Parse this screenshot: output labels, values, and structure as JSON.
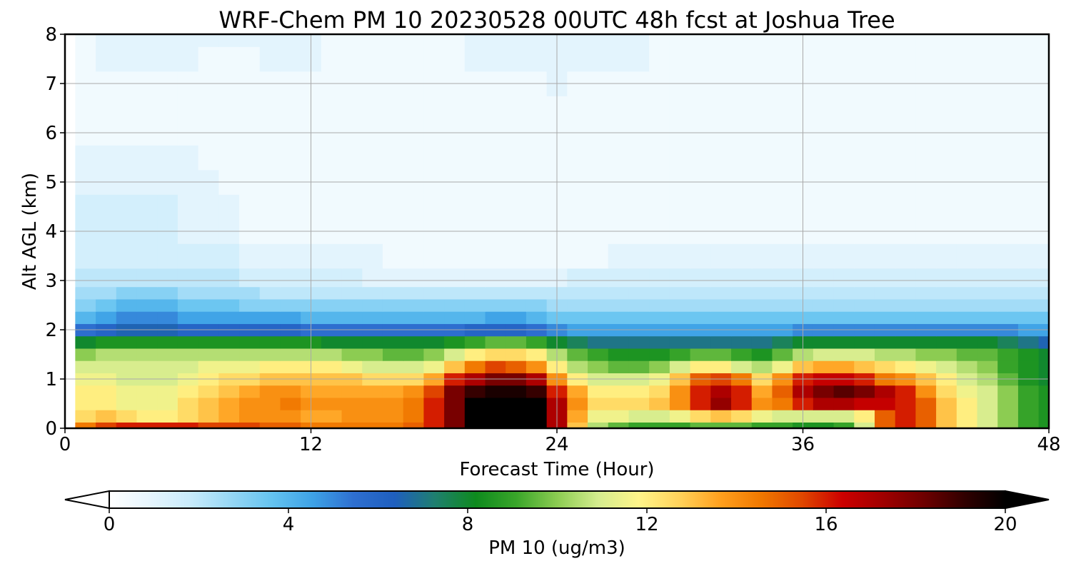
{
  "chart_data": {
    "type": "heatmap",
    "title": "WRF-Chem PM 10  20230528 00UTC 48h fcst at Joshua Tree",
    "xlabel": "Forecast Time (Hour)",
    "ylabel": "Alt AGL (km)",
    "xlim": [
      0,
      48
    ],
    "ylim": [
      0,
      8
    ],
    "x_ticks": [
      "0",
      "12",
      "24",
      "36",
      "48"
    ],
    "y_ticks": [
      "0",
      "1",
      "2",
      "3",
      "4",
      "5",
      "6",
      "7",
      "8"
    ],
    "grid": true,
    "x": [
      0,
      1,
      2,
      3,
      4,
      5,
      6,
      7,
      8,
      9,
      10,
      11,
      12,
      13,
      14,
      15,
      16,
      17,
      18,
      19,
      20,
      21,
      22,
      23,
      24,
      25,
      26,
      27,
      28,
      29,
      30,
      31,
      32,
      33,
      34,
      35,
      36,
      37,
      38,
      39,
      40,
      41,
      42,
      43,
      44,
      45,
      46,
      47,
      48
    ],
    "y": [
      0,
      0.25,
      0.5,
      0.75,
      1,
      1.25,
      1.5,
      1.75,
      2,
      2.25,
      2.5,
      2.75,
      3,
      3.5,
      4,
      4.5,
      5,
      5.5,
      6,
      6.5,
      7,
      7.5,
      8
    ],
    "values": [
      [
        0,
        14.5,
        15.5,
        16,
        16,
        16,
        16,
        15.5,
        15.5,
        15.5,
        15,
        15,
        14.5,
        14.5,
        14.5,
        14.5,
        14.5,
        15,
        16,
        18,
        20,
        20,
        20,
        20,
        17,
        13,
        10.5,
        9.5,
        9,
        9,
        9,
        9.5,
        9.5,
        9.5,
        9,
        9,
        8.5,
        8.5,
        9,
        11,
        15,
        16,
        15,
        13,
        12,
        11,
        10,
        9,
        8.5
      ],
      [
        0,
        12.5,
        13,
        12.5,
        12,
        12,
        12.5,
        13,
        13.5,
        14,
        14,
        14,
        13.5,
        13.5,
        14,
        14,
        14,
        14.5,
        16,
        18,
        20,
        20,
        20,
        20,
        17,
        13.5,
        11.5,
        11.5,
        11,
        11,
        11.5,
        12.5,
        13,
        12.5,
        11.5,
        11,
        11,
        11,
        11,
        12,
        15,
        16,
        15,
        13,
        12,
        11,
        10,
        9,
        8.5
      ],
      [
        0,
        12,
        12,
        11.5,
        11.5,
        11.5,
        12.5,
        13,
        13.5,
        14,
        14,
        14.5,
        14,
        14,
        14,
        14,
        14,
        14.5,
        16,
        18,
        20,
        20,
        20,
        20,
        17,
        14,
        12.5,
        12.5,
        12.5,
        13,
        14,
        16,
        17.5,
        16,
        14,
        14.5,
        16,
        17,
        17,
        16.5,
        16.5,
        16,
        15,
        13,
        12,
        11,
        10,
        9,
        8.5
      ],
      [
        0,
        12,
        12,
        11.5,
        11.5,
        11.5,
        12,
        12.5,
        13,
        13.5,
        14,
        14,
        13.5,
        13.5,
        13.5,
        13.5,
        13.5,
        14,
        15.5,
        18,
        19,
        19.5,
        19.5,
        19,
        16,
        13.5,
        12,
        12,
        12,
        12.5,
        14,
        16,
        17,
        16,
        13.5,
        15,
        17,
        18,
        18.5,
        18,
        17,
        16,
        14,
        12.5,
        11.5,
        11,
        10,
        9,
        8.5
      ],
      [
        0,
        11.5,
        11.5,
        11,
        11,
        11,
        11.5,
        12,
        12.5,
        12.5,
        13,
        13,
        13,
        13,
        13,
        12.5,
        12.5,
        12.5,
        13.5,
        16,
        17,
        18,
        18,
        17,
        14,
        12,
        11,
        11,
        11,
        11.5,
        13,
        15,
        15.5,
        14.5,
        12.5,
        14,
        16,
        16.5,
        16.5,
        16,
        14.5,
        14,
        13,
        12,
        11,
        10.5,
        9.5,
        8.5,
        8
      ],
      [
        0,
        11,
        11,
        11,
        11,
        11,
        11,
        11.5,
        11.5,
        11.5,
        12,
        12,
        12,
        12,
        11.5,
        11,
        11,
        11,
        11.5,
        13,
        14.5,
        15.5,
        15,
        14,
        12,
        10.5,
        10,
        9.5,
        9.5,
        10,
        11,
        12,
        12,
        11,
        10.5,
        11.5,
        13,
        13.5,
        13.5,
        13,
        12.5,
        12,
        11.5,
        11,
        10.5,
        10,
        9,
        8.5,
        8
      ],
      [
        0,
        10,
        10.5,
        10.5,
        10.5,
        10.5,
        10.5,
        10.5,
        10.5,
        10.5,
        10.5,
        10.5,
        10.5,
        10.5,
        10,
        10,
        9.5,
        9.5,
        10,
        11,
        12,
        12.5,
        12.5,
        12,
        10.5,
        9.5,
        9,
        8.5,
        8.5,
        8.5,
        9,
        9.5,
        9.5,
        9,
        8.5,
        9.5,
        10.5,
        11,
        11,
        11,
        10.5,
        10.5,
        10,
        10,
        9.5,
        9.5,
        9,
        8.5,
        8
      ],
      [
        0,
        8,
        8.5,
        8.5,
        8.5,
        8.5,
        8.5,
        8.5,
        8.5,
        8.5,
        8.5,
        8.5,
        8.5,
        8,
        8,
        8,
        8,
        8,
        8,
        8.5,
        9,
        9.5,
        9.5,
        9,
        8,
        7.5,
        7,
        7,
        7,
        7,
        7,
        7,
        7,
        7,
        7,
        7.5,
        8,
        8,
        8,
        8,
        8,
        8,
        8,
        8,
        8,
        8,
        7.5,
        7,
        6.5
      ],
      [
        0,
        5.5,
        6,
        6.5,
        6.5,
        6.5,
        6,
        6,
        6,
        6,
        6,
        6,
        5.5,
        5.5,
        5.5,
        5.5,
        5.5,
        5.5,
        5.5,
        5.5,
        6,
        6,
        6,
        5.5,
        5,
        4.5,
        4.5,
        4.5,
        4.5,
        4.5,
        4.5,
        4.5,
        4.5,
        4.5,
        4.5,
        4.5,
        5,
        5,
        5,
        5,
        5,
        5,
        5,
        5,
        5,
        5,
        5,
        4.5,
        4.5
      ],
      [
        0,
        4,
        4.5,
        5,
        5,
        5,
        4.5,
        4.5,
        4.5,
        4.5,
        4.5,
        4.5,
        4,
        4,
        4,
        4,
        4,
        4,
        4,
        4,
        4,
        4.5,
        4.5,
        4,
        3.5,
        3.5,
        3.5,
        3.5,
        3.5,
        3.5,
        3.5,
        3.5,
        3.5,
        3.5,
        3.5,
        3.5,
        3.5,
        3.5,
        3.5,
        3.5,
        3.5,
        3.5,
        3.5,
        3.5,
        3.5,
        3.5,
        3.5,
        3.5,
        3.5
      ],
      [
        0,
        3,
        3.5,
        4,
        4,
        4,
        3.5,
        3.5,
        3.5,
        3,
        3,
        3,
        3,
        3,
        3,
        3,
        3,
        3,
        3,
        3,
        3,
        3,
        3,
        3,
        2.5,
        2.5,
        2.5,
        2.5,
        2.5,
        2.5,
        2.5,
        2.5,
        2.5,
        2.5,
        2.5,
        2.5,
        2.5,
        2.5,
        2.5,
        2.5,
        2.5,
        2.5,
        2.5,
        2.5,
        2.5,
        2.5,
        2.5,
        2.5,
        2.5
      ],
      [
        0,
        2.5,
        2.5,
        3,
        3,
        3,
        2.5,
        2.5,
        2.5,
        2.5,
        2,
        2,
        2,
        2,
        2,
        2,
        2,
        2,
        2,
        2,
        2,
        2,
        2,
        2,
        2,
        2,
        2,
        2,
        2,
        2,
        2,
        2,
        2,
        2,
        2,
        2,
        2,
        2,
        2,
        2,
        2,
        2,
        2,
        2,
        2,
        2,
        2,
        2,
        2
      ],
      [
        0,
        2,
        2,
        2,
        2,
        2,
        2,
        2,
        2,
        1.5,
        1.5,
        1.5,
        1.5,
        1.5,
        1.5,
        1,
        1,
        1,
        1,
        1,
        1,
        1,
        1,
        1,
        1,
        1.5,
        1.5,
        1.5,
        1.5,
        1.5,
        1.5,
        1.5,
        1.5,
        1.5,
        1.5,
        1.5,
        1.5,
        1.5,
        1.5,
        1.5,
        1.5,
        1.5,
        1.5,
        1.5,
        1.5,
        1.5,
        1.5,
        1.5,
        1.5
      ],
      [
        0,
        1.5,
        1.5,
        1.5,
        1.5,
        1.5,
        1.5,
        1.5,
        1.5,
        1,
        1,
        1,
        1,
        1,
        1,
        1,
        0.5,
        0.5,
        0.5,
        0.5,
        0.5,
        0.5,
        0.5,
        0.5,
        0.5,
        0.5,
        0.5,
        1,
        1,
        1,
        1,
        1,
        1,
        1,
        1,
        1,
        1,
        1,
        1,
        1,
        1,
        1,
        1,
        1,
        1,
        1,
        1,
        1,
        1
      ],
      [
        0,
        1.5,
        1.5,
        1.5,
        1.5,
        1.5,
        1,
        1,
        1,
        0.5,
        0.5,
        0.5,
        0.5,
        0.5,
        0.5,
        0.5,
        0.5,
        0.5,
        0.5,
        0.5,
        0.5,
        0.5,
        0.5,
        0.5,
        0.5,
        0.5,
        0.5,
        0.5,
        0.5,
        0.5,
        0.5,
        0.5,
        0.5,
        0.5,
        0.5,
        0.5,
        0.5,
        0.5,
        0.5,
        0.5,
        0.5,
        0.5,
        0.5,
        0.5,
        0.5,
        0.5,
        0.5,
        0.5,
        0.5
      ],
      [
        0,
        1.5,
        1.5,
        1.5,
        1.5,
        1.5,
        1,
        1,
        1,
        0.5,
        0.5,
        0.5,
        0.5,
        0.5,
        0.5,
        0.5,
        0.5,
        0.5,
        0.5,
        0.5,
        0.5,
        0.5,
        0.5,
        0.5,
        0.5,
        0.5,
        0.5,
        0.5,
        0.5,
        0.5,
        0.5,
        0.5,
        0.5,
        0.5,
        0.5,
        0.5,
        0.5,
        0.5,
        0.5,
        0.5,
        0.5,
        0.5,
        0.5,
        0.5,
        0.5,
        0.5,
        0.5,
        0.5,
        0.5
      ],
      [
        0,
        1,
        1,
        1,
        1,
        1,
        1,
        1,
        0.5,
        0.5,
        0.5,
        0.5,
        0.5,
        0.5,
        0.5,
        0.5,
        0.5,
        0.5,
        0.5,
        0.5,
        0.5,
        0.5,
        0.5,
        0.5,
        0.5,
        0.5,
        0.5,
        0.5,
        0.5,
        0.5,
        0.5,
        0.5,
        0.5,
        0.5,
        0.5,
        0.5,
        0.5,
        0.5,
        0.5,
        0.5,
        0.5,
        0.5,
        0.5,
        0.5,
        0.5,
        0.5,
        0.5,
        0.5,
        0.5
      ],
      [
        0,
        1,
        1,
        1,
        1,
        1,
        1,
        0.5,
        0.5,
        0.5,
        0.5,
        0.5,
        0.5,
        0.5,
        0.5,
        0.5,
        0.5,
        0.5,
        0.5,
        0.5,
        0.5,
        0.5,
        0.5,
        0.5,
        0.5,
        0.5,
        0.5,
        0.5,
        0.5,
        0.5,
        0.5,
        0.5,
        0.5,
        0.5,
        0.5,
        0.5,
        0.5,
        0.5,
        0.5,
        0.5,
        0.5,
        0.5,
        0.5,
        0.5,
        0.5,
        0.5,
        0.5,
        0.5,
        0.5
      ],
      [
        0,
        0.5,
        0.5,
        0.5,
        0.5,
        0.5,
        0.5,
        0.5,
        0.5,
        0.5,
        0.5,
        0.5,
        0.5,
        0.5,
        0.5,
        0.5,
        0.5,
        0.5,
        0.5,
        0.5,
        0.5,
        0.5,
        0.5,
        0.5,
        0.5,
        0.5,
        0.5,
        0.5,
        0.5,
        0.5,
        0.5,
        0.5,
        0.5,
        0.5,
        0.5,
        0.5,
        0.5,
        0.5,
        0.5,
        0.5,
        0.5,
        0.5,
        0.5,
        0.5,
        0.5,
        0.5,
        0.5,
        0.5,
        0.5
      ],
      [
        0,
        0.5,
        0.5,
        0.5,
        0.5,
        0.5,
        0.5,
        0.5,
        0.5,
        0.5,
        0.5,
        0.5,
        0.5,
        0.5,
        0.5,
        0.5,
        0.5,
        0.5,
        0.5,
        0.5,
        0.5,
        0.5,
        0.5,
        0.5,
        0.5,
        0.5,
        0.5,
        0.5,
        0.5,
        0.5,
        0.5,
        0.5,
        0.5,
        0.5,
        0.5,
        0.5,
        0.5,
        0.5,
        0.5,
        0.5,
        0.5,
        0.5,
        0.5,
        0.5,
        0.5,
        0.5,
        0.5,
        0.5,
        0.5
      ],
      [
        0,
        0.5,
        0.5,
        0.5,
        0.5,
        0.5,
        0.5,
        0.5,
        0.5,
        0.5,
        0.5,
        0.5,
        0.5,
        0.5,
        0.5,
        0.5,
        0.5,
        0.5,
        0.5,
        0.5,
        0.5,
        0.5,
        0.5,
        0.5,
        1,
        0.5,
        0.5,
        0.5,
        0.5,
        0.5,
        0.5,
        0.5,
        0.5,
        0.5,
        0.5,
        0.5,
        0.5,
        0.5,
        0.5,
        0.5,
        0.5,
        0.5,
        0.5,
        0.5,
        0.5,
        0.5,
        0.5,
        0.5,
        0.5
      ],
      [
        0,
        0.5,
        1,
        1,
        1,
        1,
        1,
        0.5,
        0.5,
        0.5,
        1,
        1,
        1,
        0.5,
        0.5,
        0.5,
        0.5,
        0.5,
        0.5,
        0.5,
        1,
        1,
        1,
        1,
        1,
        1,
        1,
        1,
        1,
        0.5,
        0.5,
        0.5,
        0.5,
        0.5,
        0.5,
        0.5,
        0.5,
        0.5,
        0.5,
        0.5,
        0.5,
        0.5,
        0.5,
        0.5,
        0.5,
        0.5,
        0.5,
        0.5,
        0.5
      ],
      [
        0,
        0.5,
        1,
        1,
        1,
        1,
        1,
        1,
        1,
        1,
        1,
        1,
        1,
        0.5,
        0.5,
        0.5,
        0.5,
        0.5,
        0.5,
        0.5,
        1,
        1,
        1,
        1,
        1,
        1,
        1,
        1,
        1,
        0.5,
        0.5,
        0.5,
        0.5,
        0.5,
        0.5,
        0.5,
        0.5,
        0.5,
        0.5,
        0.5,
        0.5,
        0.5,
        0.5,
        0.5,
        0.5,
        0.5,
        0.5,
        0.5,
        0.5
      ]
    ],
    "colorbar": {
      "label": "PM 10  (ug/m3)",
      "ticks": [
        "0",
        "4",
        "8",
        "12",
        "16",
        "20"
      ],
      "range": [
        0,
        20
      ],
      "extend": "both",
      "colors": [
        "#ffffff",
        "#e6f5fd",
        "#c8ebfb",
        "#96d7f5",
        "#64c3f0",
        "#3ea2e6",
        "#2e6fd0",
        "#1f5fbf",
        "#1f7f6f",
        "#0e8a1e",
        "#3aa62a",
        "#8ccc52",
        "#d4ec8e",
        "#fff58a",
        "#ffd25a",
        "#ffa01e",
        "#f07800",
        "#e04800",
        "#cc0000",
        "#a00000",
        "#6e0000",
        "#300000",
        "#000000"
      ]
    }
  }
}
